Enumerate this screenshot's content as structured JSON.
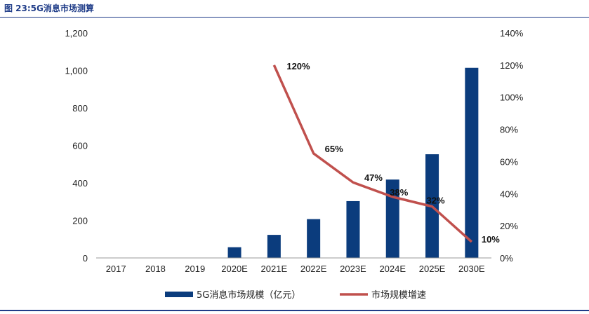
{
  "figure": {
    "title": "图 23:5G消息市场测算"
  },
  "colors": {
    "bar": "#0b3c7d",
    "line": "#c0504d",
    "rule": "#1f3c88"
  },
  "chart_data": {
    "type": "bar",
    "categories": [
      "2017",
      "2018",
      "2019",
      "2020E",
      "2021E",
      "2022E",
      "2023E",
      "2024E",
      "2025E",
      "2030E"
    ],
    "series": [
      {
        "name": "5G消息市场规模（亿元）",
        "type": "bar",
        "axis": "left",
        "values": [
          0,
          0,
          0,
          57,
          123,
          207,
          303,
          418,
          553,
          1014
        ]
      },
      {
        "name": "市场规模增速",
        "type": "line",
        "axis": "right",
        "values": [
          null,
          null,
          null,
          null,
          1.2,
          0.65,
          0.47,
          0.38,
          0.32,
          0.1
        ],
        "labels": [
          "",
          "",
          "",
          "",
          "120%",
          "65%",
          "47%",
          "38%",
          "32%",
          "10%"
        ]
      }
    ],
    "y_left": {
      "ticks": [
        "0",
        "200",
        "400",
        "600",
        "800",
        "1,000",
        "1,200"
      ],
      "ylim": [
        0,
        1200
      ]
    },
    "y_right": {
      "ticks": [
        "0%",
        "20%",
        "40%",
        "60%",
        "80%",
        "100%",
        "120%",
        "140%"
      ],
      "ylim": [
        0,
        1.4
      ]
    },
    "grid": false,
    "legend_position": "bottom"
  }
}
